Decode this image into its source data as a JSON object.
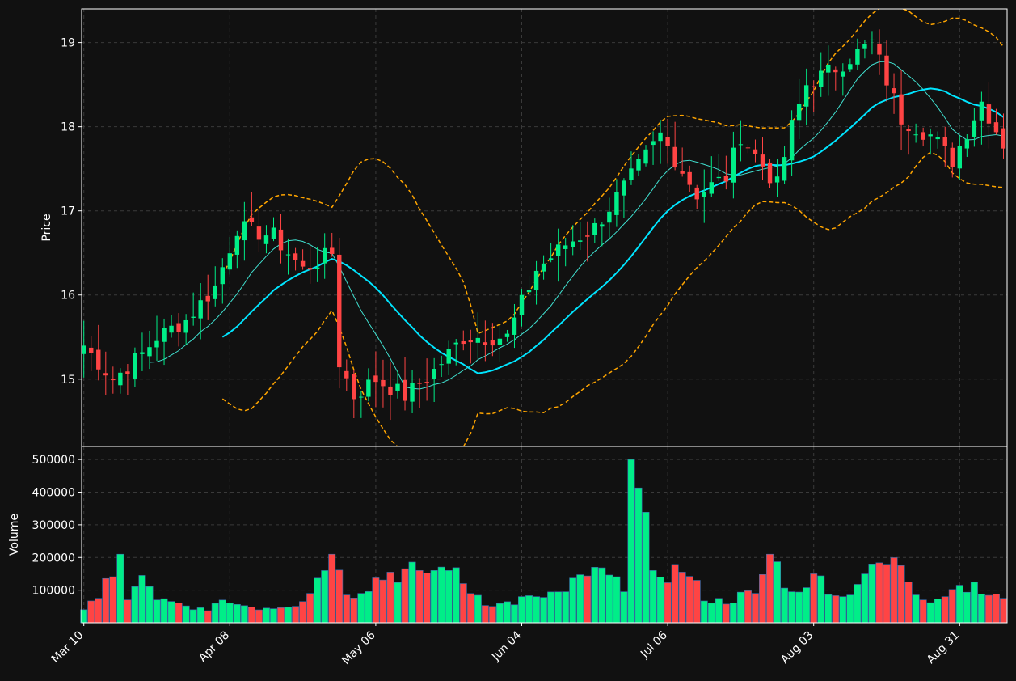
{
  "chart_data": [
    {
      "type": "candlestick",
      "ylabel": "Price",
      "ylim": [
        14.2,
        19.4
      ],
      "yticks": [
        "15",
        "16",
        "17",
        "18",
        "19"
      ],
      "x_tick_labels": [
        {
          "index": 0,
          "label": "Mar 10"
        },
        {
          "index": 20,
          "label": "Apr 08"
        },
        {
          "index": 40,
          "label": "May 06"
        },
        {
          "index": 60,
          "label": "Jun 04"
        },
        {
          "index": 80,
          "label": "Jul 06"
        },
        {
          "index": 100,
          "label": "Aug 03"
        },
        {
          "index": 120,
          "label": "Aug 31"
        }
      ],
      "index_range": [
        -0.3,
        126.5
      ],
      "up_color": "#00ee88",
      "down_color": "#ff4444",
      "ma_short_color": "#40e0d0",
      "ma_long_color": "#00e5ff",
      "band_color": "#ffa500",
      "close_anchors": [
        [
          0,
          15.4
        ],
        [
          4,
          15.0
        ],
        [
          8,
          15.3
        ],
        [
          10,
          15.5
        ],
        [
          14,
          15.7
        ],
        [
          18,
          16.1
        ],
        [
          21,
          16.8
        ],
        [
          26,
          16.7
        ],
        [
          30,
          16.3
        ],
        [
          34,
          16.5
        ],
        [
          35,
          15.2
        ],
        [
          37,
          14.8
        ],
        [
          40,
          15.0
        ],
        [
          44,
          14.8
        ],
        [
          48,
          15.1
        ],
        [
          52,
          15.5
        ],
        [
          58,
          15.5
        ],
        [
          62,
          16.3
        ],
        [
          66,
          16.6
        ],
        [
          70,
          16.8
        ],
        [
          75,
          17.4
        ],
        [
          79,
          17.9
        ],
        [
          84,
          17.2
        ],
        [
          88,
          17.4
        ],
        [
          90,
          17.9
        ],
        [
          95,
          17.3
        ],
        [
          97,
          18.0
        ],
        [
          99,
          18.5
        ],
        [
          103,
          18.7
        ],
        [
          108,
          19.0
        ],
        [
          112,
          18.1
        ],
        [
          116,
          17.9
        ],
        [
          119,
          17.6
        ],
        [
          123,
          18.3
        ],
        [
          126,
          17.8
        ]
      ],
      "volume_anchors": [
        [
          0,
          40000
        ],
        [
          2,
          75000
        ],
        [
          5,
          210000
        ],
        [
          6,
          70000
        ],
        [
          8,
          145000
        ],
        [
          10,
          70000
        ],
        [
          15,
          40000
        ],
        [
          20,
          60000
        ],
        [
          25,
          45000
        ],
        [
          30,
          65000
        ],
        [
          34,
          210000
        ],
        [
          36,
          85000
        ],
        [
          42,
          155000
        ],
        [
          46,
          160000
        ],
        [
          50,
          160000
        ],
        [
          52,
          120000
        ],
        [
          56,
          50000
        ],
        [
          62,
          80000
        ],
        [
          66,
          95000
        ],
        [
          70,
          170000
        ],
        [
          74,
          95000
        ],
        [
          75,
          500000
        ],
        [
          78,
          160000
        ],
        [
          82,
          155000
        ],
        [
          86,
          60000
        ],
        [
          92,
          90000
        ],
        [
          94,
          210000
        ],
        [
          97,
          95000
        ],
        [
          100,
          150000
        ],
        [
          104,
          80000
        ],
        [
          108,
          180000
        ],
        [
          112,
          175000
        ],
        [
          115,
          70000
        ],
        [
          118,
          80000
        ],
        [
          120,
          115000
        ],
        [
          126,
          75000
        ]
      ],
      "bands": {
        "period": 20,
        "stdev_multiplier": 2
      }
    },
    {
      "type": "bar",
      "ylabel": "Volume",
      "ylim": [
        0,
        540000
      ],
      "yticks": [
        "100000",
        "200000",
        "300000",
        "400000",
        "500000"
      ]
    }
  ]
}
